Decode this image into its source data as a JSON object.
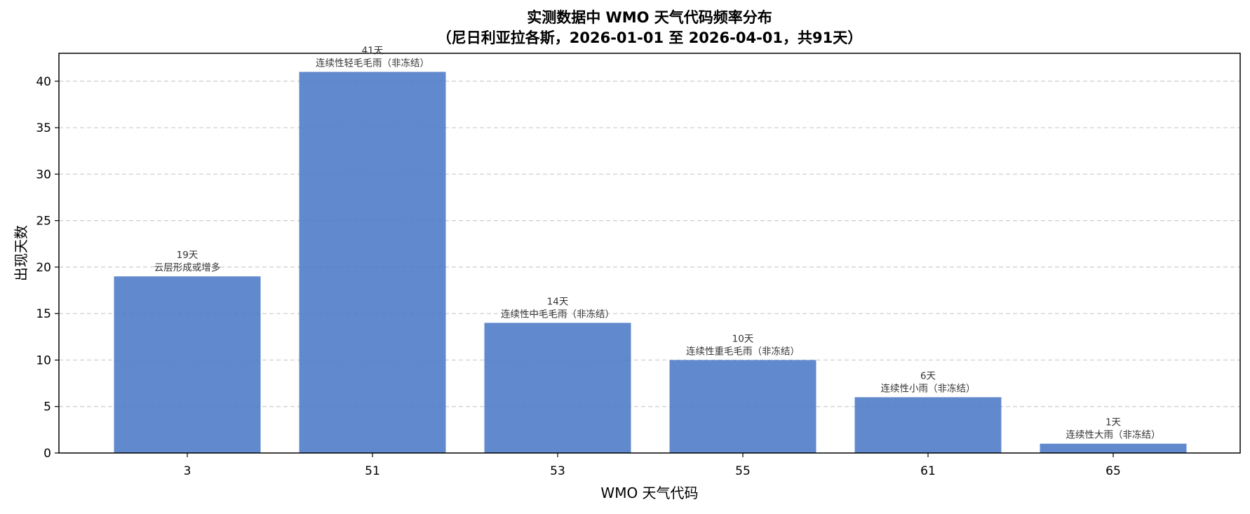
{
  "chart_data": {
    "type": "bar",
    "title_lines": [
      "实测数据中 WMO 天气代码频率分布",
      "（尼日利亚拉各斯，2026-01-01 至 2026-04-01，共91天）"
    ],
    "xlabel": "WMO 天气代码",
    "ylabel": "出现天数",
    "categories": [
      "3",
      "51",
      "53",
      "55",
      "61",
      "65"
    ],
    "values": [
      19,
      41,
      14,
      10,
      6,
      1
    ],
    "count_labels": [
      "19天",
      "41天",
      "14天",
      "10天",
      "6天",
      "1天"
    ],
    "description_labels": [
      "云层形成或增多",
      "连续性轻毛毛雨（非冻结）",
      "连续性中毛毛雨（非冻结）",
      "连续性重毛毛雨（非冻结）",
      "连续性小雨（非冻结）",
      "连续性大雨（非冻结）"
    ],
    "yticks": [
      0,
      5,
      10,
      15,
      20,
      25,
      30,
      35,
      40
    ],
    "ylim": [
      0,
      43
    ],
    "grid": "y-dashed",
    "bar_color": "#4a78c6"
  }
}
